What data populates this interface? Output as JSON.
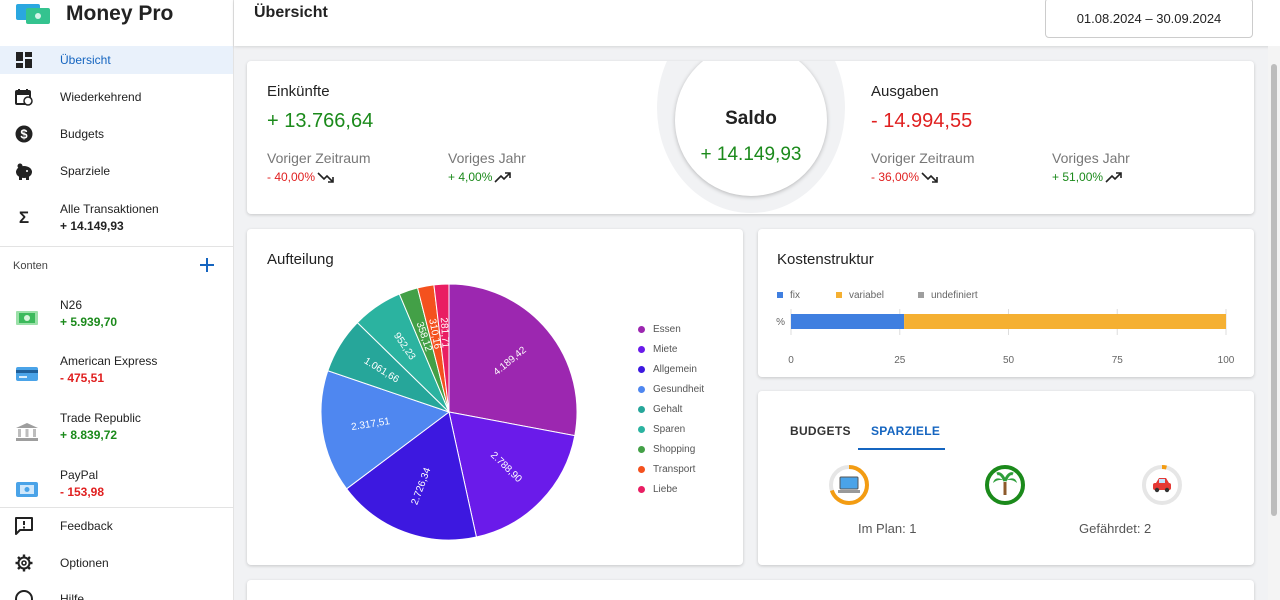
{
  "app": {
    "name": "Money Pro"
  },
  "nav": {
    "items": [
      {
        "label": "Übersicht"
      },
      {
        "label": "Wiederkehrend"
      },
      {
        "label": "Budgets"
      },
      {
        "label": "Sparziele"
      },
      {
        "label": "Alle Transaktionen",
        "sub": "+ 14.149,93"
      }
    ],
    "accounts_header": "Konten",
    "accounts": [
      {
        "name": "N26",
        "balance": "+ 5.939,70"
      },
      {
        "name": "American Express",
        "balance": "- 475,51"
      },
      {
        "name": "Trade Republic",
        "balance": "+ 8.839,72"
      },
      {
        "name": "PayPal",
        "balance": "- 153,98"
      }
    ],
    "bottom": [
      {
        "label": "Feedback"
      },
      {
        "label": "Optionen"
      },
      {
        "label": "Hilfe"
      }
    ]
  },
  "header": {
    "title": "Übersicht",
    "date_range": "01.08.2024 – 30.09.2024"
  },
  "income": {
    "title": "Einkünfte",
    "amount": "+ 13.766,64",
    "prev_period_label": "Voriger Zeitraum",
    "prev_period_value": "- 40,00%",
    "prev_year_label": "Voriges Jahr",
    "prev_year_value": "+ 4,00%"
  },
  "balance": {
    "title": "Saldo",
    "amount": "+ 14.149,93"
  },
  "expenses": {
    "title": "Ausgaben",
    "amount": "- 14.994,55",
    "prev_period_label": "Voriger Zeitraum",
    "prev_period_value": "- 36,00%",
    "prev_year_label": "Voriges Jahr",
    "prev_year_value": "+ 51,00%"
  },
  "breakdown": {
    "title": "Aufteilung"
  },
  "cost_structure": {
    "title": "Kostenstruktur"
  },
  "goals": {
    "tabs": [
      "BUDGETS",
      "SPARZIELE"
    ],
    "active_tab": "SPARZIELE",
    "on_plan": "Im Plan: 1",
    "at_risk": "Gefährdet: 2",
    "icons": [
      "laptop-icon",
      "palm-tree-icon",
      "car-icon"
    ]
  },
  "colors": {
    "accent": "#1565c0",
    "positive": "#1b8a1b",
    "negative": "#e02020"
  },
  "chart_data": [
    {
      "type": "pie",
      "title": "Aufteilung",
      "categories": [
        "Essen",
        "Miete",
        "Allgemein",
        "Gesundheit",
        "Gehalt",
        "Sparen",
        "Shopping",
        "Transport",
        "Liebe"
      ],
      "values": [
        4189.42,
        2788.9,
        2726.34,
        2317.51,
        1061.66,
        952.23,
        358.12,
        310.16,
        281.71
      ],
      "value_labels": [
        "4.189,42",
        "2.788,90",
        "2.726,34",
        "2.317,51",
        "1.061,66",
        "952,23",
        "358,12",
        "310,16",
        "281,71"
      ],
      "colors": [
        "#9c27b0",
        "#6a1bea",
        "#3d18e0",
        "#4f87f0",
        "#26a69a",
        "#2bb3a0",
        "#43a047",
        "#f4511e",
        "#e91e63"
      ],
      "legend": "right"
    },
    {
      "type": "bar",
      "title": "Kostenstruktur",
      "orientation": "horizontal",
      "stacked": true,
      "categories": [
        "%"
      ],
      "series": [
        {
          "name": "fix",
          "values": [
            26
          ],
          "color": "#3f7fe0"
        },
        {
          "name": "variabel",
          "values": [
            74
          ],
          "color": "#f5b032"
        },
        {
          "name": "undefiniert",
          "values": [
            0
          ],
          "color": "#9e9e9e"
        }
      ],
      "xlim": [
        0,
        100
      ],
      "xticks": [
        0,
        25,
        50,
        75,
        100
      ],
      "legend": "top"
    },
    {
      "type": "pie",
      "title": "Sparziele",
      "categories": [
        "laptop-icon",
        "palm-tree-icon",
        "car-icon"
      ],
      "values": [
        0.7,
        1.0,
        0.04
      ],
      "colors": [
        "#f39c12",
        "#1b8a1b",
        "#f39c12"
      ]
    }
  ]
}
